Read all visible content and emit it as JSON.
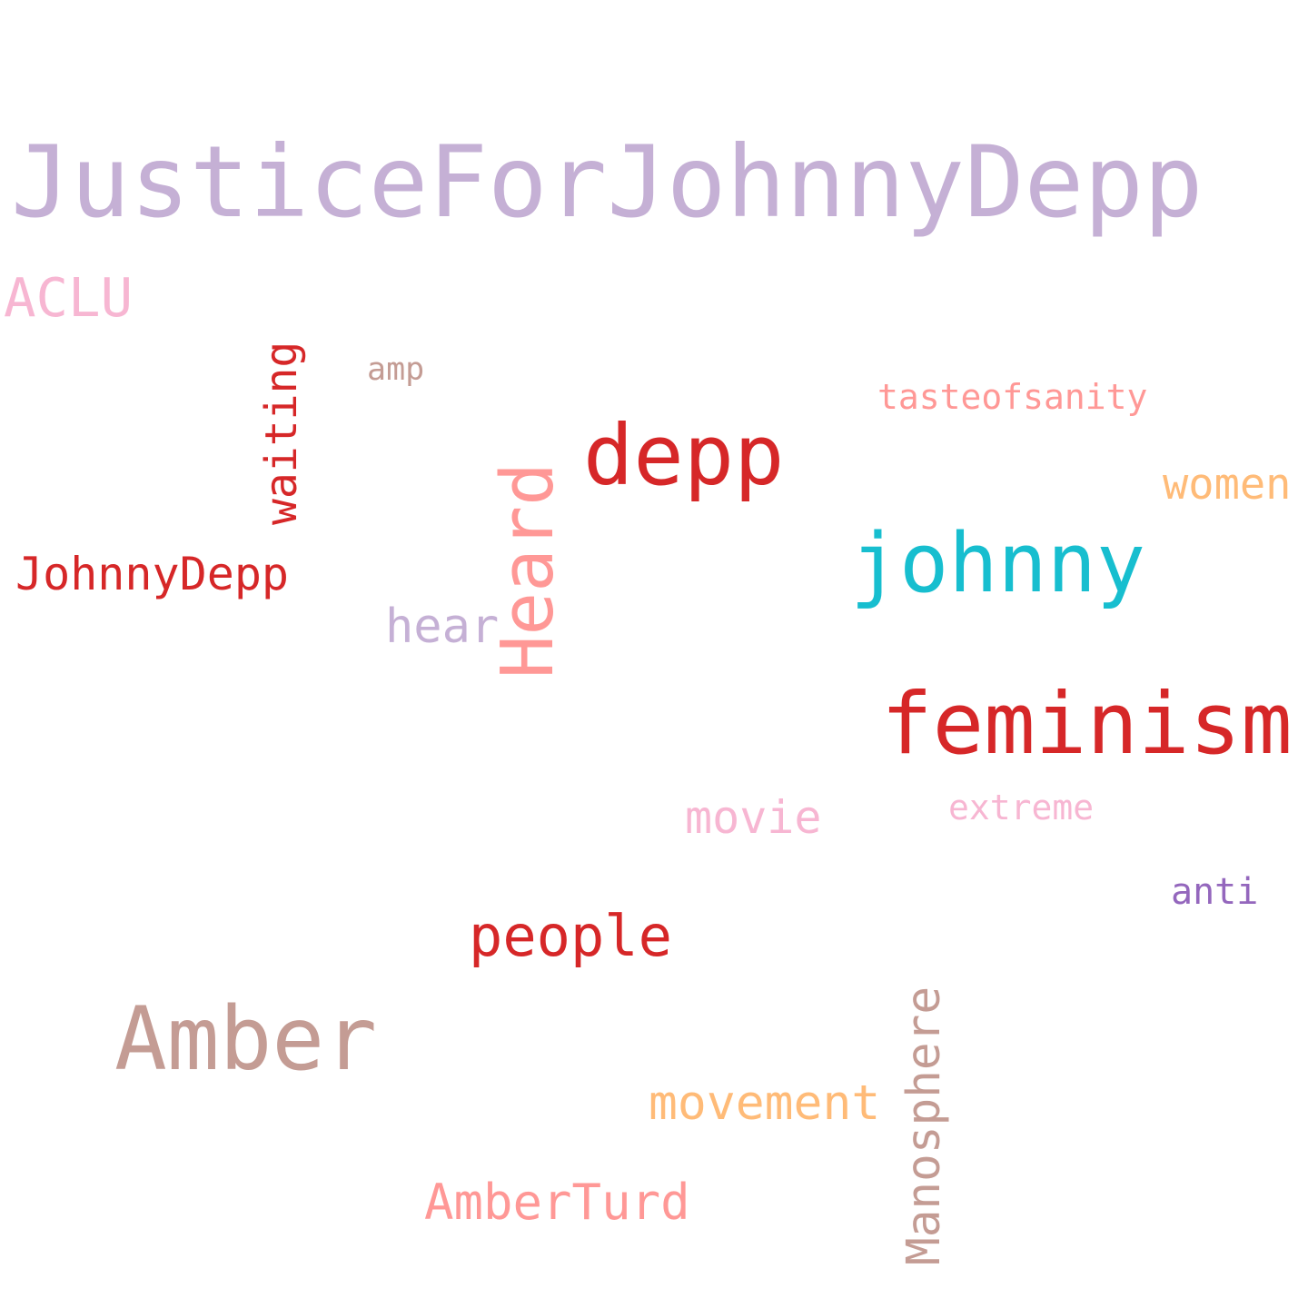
{
  "words": {
    "justice": {
      "text": "JusticeForJohnnyDepp",
      "color": "#c5b0d5"
    },
    "aclu": {
      "text": "ACLU",
      "color": "#f7b6d2"
    },
    "waiting": {
      "text": "waiting",
      "color": "#d62728"
    },
    "amp": {
      "text": "amp",
      "color": "#c49c94"
    },
    "tasteofsanity": {
      "text": "tasteofsanity",
      "color": "#ff9896"
    },
    "depp": {
      "text": "depp",
      "color": "#d62728"
    },
    "heard": {
      "text": "Heard",
      "color": "#ff9896"
    },
    "women": {
      "text": "women",
      "color": "#ffbb78"
    },
    "johnnydepp": {
      "text": "JohnnyDepp",
      "color": "#d62728"
    },
    "johnny": {
      "text": "johnny",
      "color": "#17becf"
    },
    "hear": {
      "text": "hear",
      "color": "#c5b0d5"
    },
    "feminism": {
      "text": "feminism",
      "color": "#d62728"
    },
    "movie": {
      "text": "movie",
      "color": "#f7b6d2"
    },
    "extreme": {
      "text": "extreme",
      "color": "#f7b6d2"
    },
    "anti": {
      "text": "anti",
      "color": "#9467bd"
    },
    "people": {
      "text": "people",
      "color": "#d62728"
    },
    "amber": {
      "text": "Amber",
      "color": "#c49c94"
    },
    "manosphere": {
      "text": "Manosphere",
      "color": "#c49c94"
    },
    "movement": {
      "text": "movement",
      "color": "#ffbb78"
    },
    "amberturd": {
      "text": "AmberTurd",
      "color": "#ff9896"
    }
  }
}
